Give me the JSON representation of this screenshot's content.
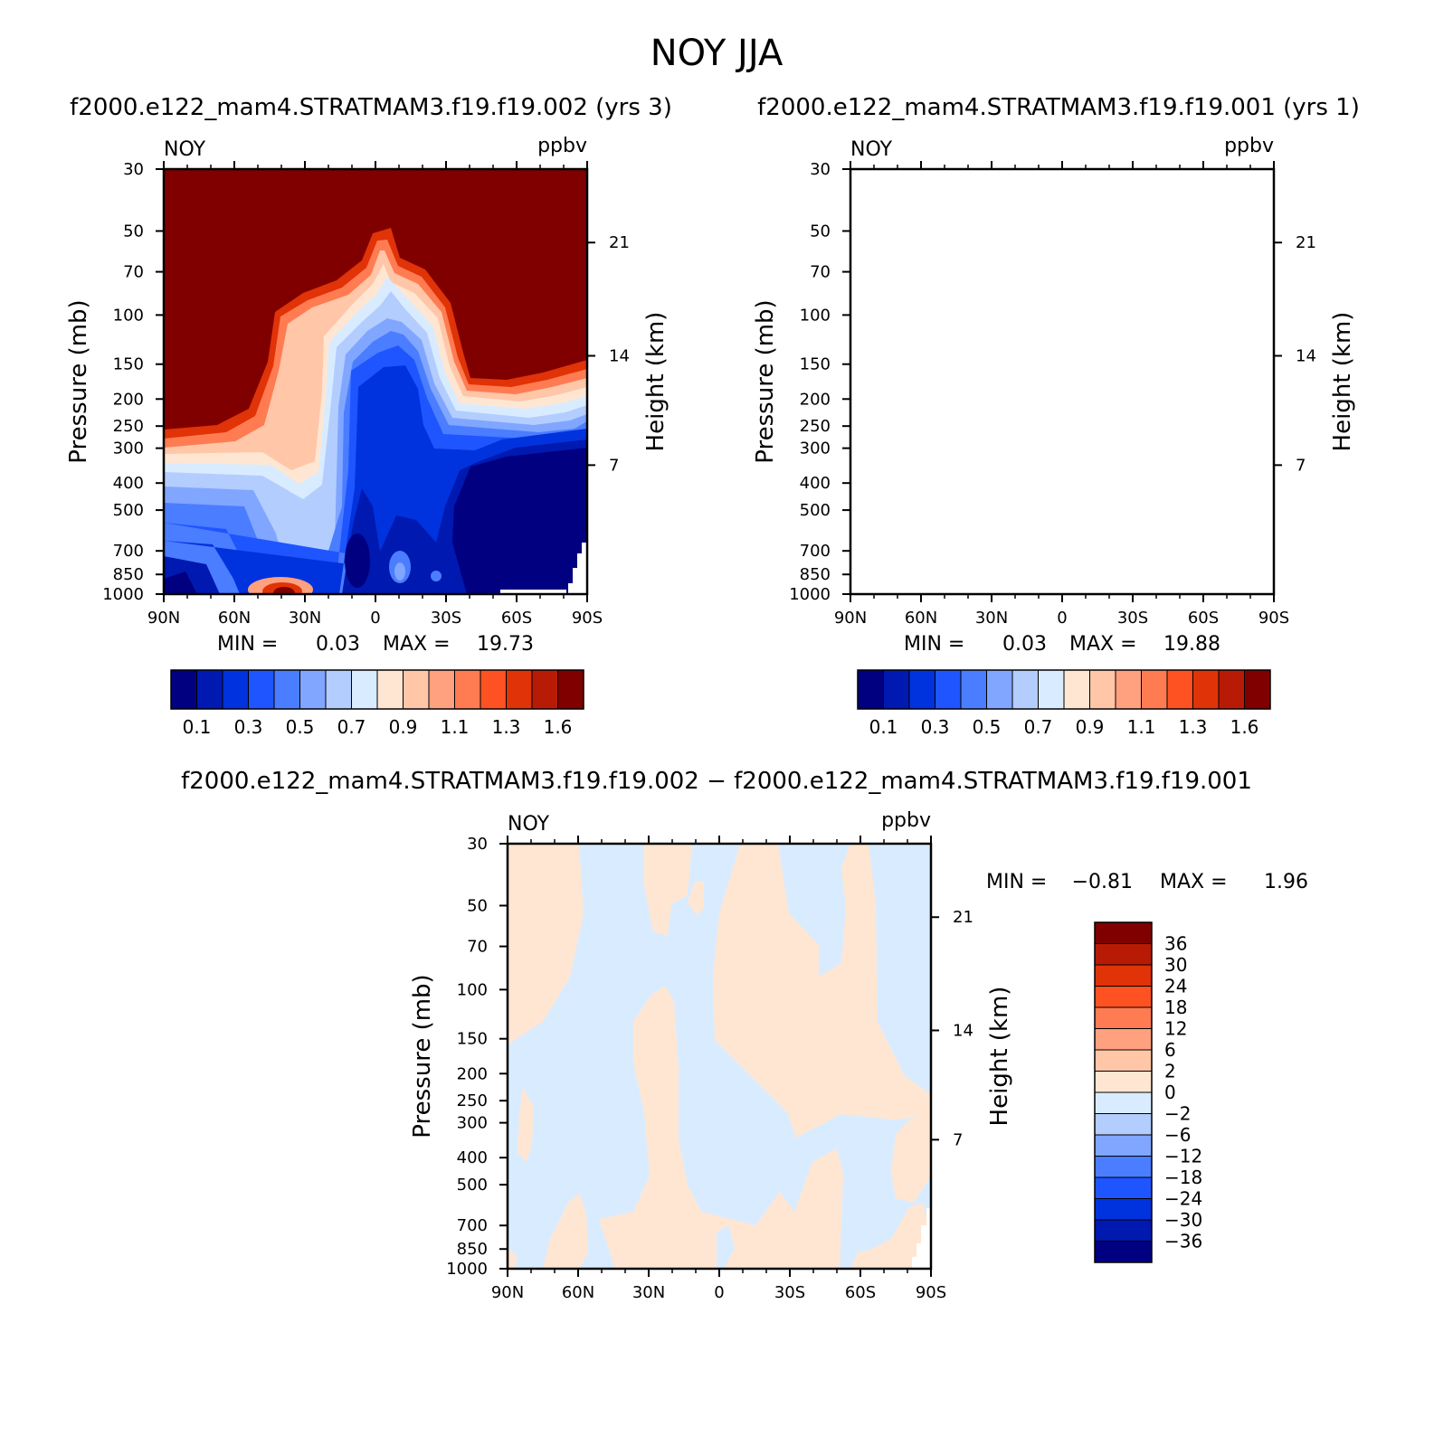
{
  "chart_data": {
    "type": "heatmap",
    "title": "NOY JJA",
    "panels": [
      {
        "id": "top_left",
        "subtitle": "f2000.e122_mam4.STRATMAM3.f19.f19.002 (yrs 3)",
        "variable": "NOY",
        "units": "ppbv",
        "ylabel": "Pressure (mb)",
        "ylabel_right": "Height (km)",
        "x_ticks": [
          "90N",
          "60N",
          "30N",
          "0",
          "30S",
          "60S",
          "90S"
        ],
        "y_ticks": [
          "30",
          "50",
          "70",
          "100",
          "150",
          "200",
          "250",
          "300",
          "400",
          "500",
          "700",
          "850",
          "1000"
        ],
        "y_values": [
          30,
          50,
          70,
          100,
          150,
          200,
          250,
          300,
          400,
          500,
          700,
          850,
          1000
        ],
        "height_ticks": [
          "21",
          "14",
          "7"
        ],
        "height_pressures": [
          55,
          140,
          345
        ],
        "min_label": "MIN =",
        "min_value": "0.03",
        "max_label": "MAX =",
        "max_value": "19.73",
        "colorbar_labels": [
          "0.1",
          "0.3",
          "0.5",
          "0.7",
          "0.9",
          "1.1",
          "1.3",
          "1.6"
        ],
        "colors": [
          "#000080",
          "#0019b0",
          "#0033dd",
          "#1f55ff",
          "#4a7dff",
          "#80a6ff",
          "#b3cdff",
          "#d9ecff",
          "#ffe6d2",
          "#ffc6a8",
          "#ffa07e",
          "#ff7b52",
          "#ff5222",
          "#e03307",
          "#b81b05",
          "#800000"
        ]
      },
      {
        "id": "top_right",
        "subtitle": "f2000.e122_mam4.STRATMAM3.f19.f19.001 (yrs 1)",
        "variable": "NOY",
        "units": "ppbv",
        "ylabel": "Pressure (mb)",
        "ylabel_right": "Height (km)",
        "x_ticks": [
          "90N",
          "60N",
          "30N",
          "0",
          "30S",
          "60S",
          "90S"
        ],
        "y_ticks": [
          "30",
          "50",
          "70",
          "100",
          "150",
          "200",
          "250",
          "300",
          "400",
          "500",
          "700",
          "850",
          "1000"
        ],
        "y_values": [
          30,
          50,
          70,
          100,
          150,
          200,
          250,
          300,
          400,
          500,
          700,
          850,
          1000
        ],
        "height_ticks": [
          "21",
          "14",
          "7"
        ],
        "height_pressures": [
          55,
          140,
          345
        ],
        "min_label": "MIN =",
        "min_value": "0.03",
        "max_label": "MAX =",
        "max_value": "19.88",
        "colorbar_labels": [
          "0.1",
          "0.3",
          "0.5",
          "0.7",
          "0.9",
          "1.1",
          "1.3",
          "1.6"
        ],
        "colors": [
          "#000080",
          "#0019b0",
          "#0033dd",
          "#1f55ff",
          "#4a7dff",
          "#80a6ff",
          "#b3cdff",
          "#d9ecff",
          "#ffe6d2",
          "#ffc6a8",
          "#ffa07e",
          "#ff7b52",
          "#ff5222",
          "#e03307",
          "#b81b05",
          "#800000"
        ]
      },
      {
        "id": "bottom_diff",
        "subtitle": "f2000.e122_mam4.STRATMAM3.f19.f19.002 − f2000.e122_mam4.STRATMAM3.f19.f19.001",
        "variable": "NOY",
        "units": "ppbv",
        "ylabel": "Pressure (mb)",
        "ylabel_right": "Height (km)",
        "x_ticks": [
          "90N",
          "60N",
          "30N",
          "0",
          "30S",
          "60S",
          "90S"
        ],
        "y_ticks": [
          "30",
          "50",
          "70",
          "100",
          "150",
          "200",
          "250",
          "300",
          "400",
          "500",
          "700",
          "850",
          "1000"
        ],
        "y_values": [
          30,
          50,
          70,
          100,
          150,
          200,
          250,
          300,
          400,
          500,
          700,
          850,
          1000
        ],
        "height_ticks": [
          "21",
          "14",
          "7"
        ],
        "height_pressures": [
          55,
          140,
          345
        ],
        "min_label": "MIN =",
        "min_value": "−0.81",
        "max_label": "MAX =",
        "max_value": "1.96",
        "colorbar_labels": [
          "36",
          "30",
          "24",
          "18",
          "12",
          "6",
          "2",
          "0",
          "−2",
          "−6",
          "−12",
          "−18",
          "−24",
          "−30",
          "−36"
        ],
        "colors": [
          "#800000",
          "#b81b05",
          "#e03307",
          "#ff5222",
          "#ff7b52",
          "#ffa07e",
          "#ffc6a8",
          "#ffe6d2",
          "#d9ecff",
          "#b3cdff",
          "#80a6ff",
          "#4a7dff",
          "#1f55ff",
          "#0033dd",
          "#0019b0",
          "#000080"
        ]
      }
    ]
  }
}
